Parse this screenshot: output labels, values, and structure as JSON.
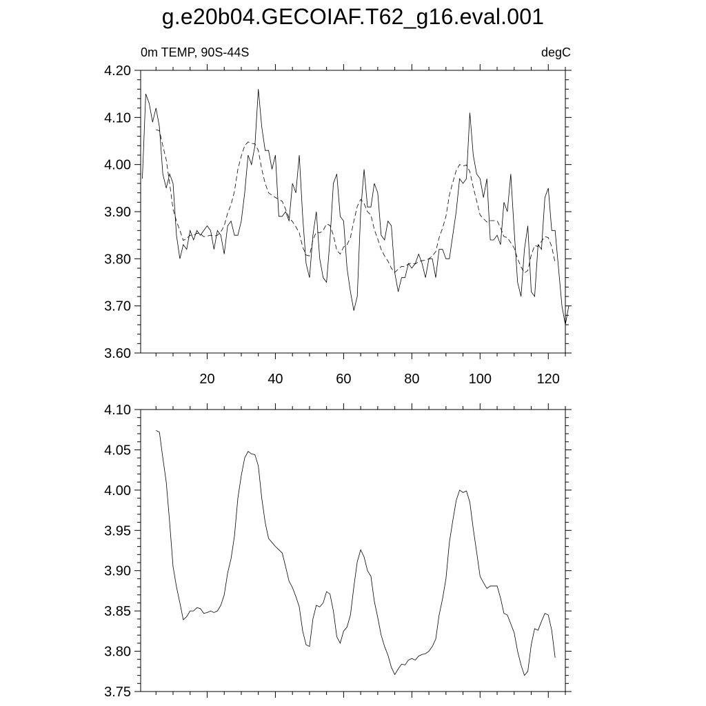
{
  "header": {
    "title": "g.e20b04.GECOIAF.T62_g16.eval.001",
    "left_string": "0m TEMP, 90S-44S",
    "right_string": "degC"
  },
  "chart_data": [
    {
      "type": "line",
      "xlim": [
        0.5,
        125
      ],
      "ylim": [
        3.6,
        4.2
      ],
      "x_ticks": [
        20,
        40,
        60,
        80,
        100,
        120
      ],
      "x_tick_labels": [
        "20",
        "40",
        "60",
        "80",
        "100",
        "120"
      ],
      "y_ticks": [
        3.6,
        3.7,
        3.8,
        3.9,
        4.0,
        4.1,
        4.2
      ],
      "y_tick_labels": [
        "3.60",
        "3.70",
        "3.80",
        "3.90",
        "4.00",
        "4.10",
        "4.20"
      ],
      "grid": false,
      "series": [
        {
          "style": "solid",
          "x_start": 1,
          "values": [
            3.97,
            4.15,
            4.13,
            4.09,
            4.12,
            4.08,
            3.98,
            3.95,
            3.98,
            3.96,
            3.85,
            3.8,
            3.83,
            3.82,
            3.86,
            3.84,
            3.86,
            3.85,
            3.86,
            3.87,
            3.86,
            3.82,
            3.86,
            3.85,
            3.81,
            3.87,
            3.88,
            3.85,
            3.85,
            3.88,
            3.94,
            4.02,
            4.0,
            4.04,
            4.16,
            4.08,
            4.03,
            4.03,
            3.99,
            4.02,
            3.89,
            3.89,
            3.9,
            3.88,
            3.96,
            3.94,
            4.02,
            3.89,
            3.79,
            3.76,
            3.85,
            3.9,
            3.8,
            3.76,
            3.75,
            3.84,
            3.96,
            3.98,
            3.89,
            3.88,
            3.78,
            3.73,
            3.69,
            3.72,
            3.9,
            3.99,
            3.91,
            3.91,
            3.96,
            3.94,
            3.85,
            3.84,
            3.88,
            3.87,
            3.77,
            3.73,
            3.76,
            3.76,
            3.79,
            3.78,
            3.79,
            3.81,
            3.79,
            3.76,
            3.8,
            3.8,
            3.76,
            3.82,
            3.82,
            3.8,
            3.8,
            3.85,
            3.9,
            3.97,
            3.96,
            3.97,
            4.11,
            4.02,
            3.98,
            3.97,
            3.93,
            3.97,
            3.84,
            3.84,
            3.85,
            3.83,
            3.92,
            3.9,
            3.98,
            3.86,
            3.75,
            3.72,
            3.82,
            3.87,
            3.73,
            3.72,
            3.83,
            3.82,
            3.93,
            3.95,
            3.86,
            3.86,
            3.78,
            3.7,
            3.66,
            3.7
          ]
        },
        {
          "style": "dashed",
          "x_start": 5,
          "values": [
            4.074,
            4.072,
            4.04,
            4.01,
            3.96,
            3.905,
            3.88,
            3.86,
            3.839,
            3.843,
            3.85,
            3.85,
            3.854,
            3.853,
            3.847,
            3.848,
            3.85,
            3.848,
            3.85,
            3.857,
            3.87,
            3.897,
            3.915,
            3.943,
            3.99,
            4.018,
            4.04,
            4.048,
            4.045,
            4.044,
            4.03,
            3.99,
            3.96,
            3.94,
            3.935,
            3.93,
            3.926,
            3.922,
            3.905,
            3.887,
            3.879,
            3.868,
            3.855,
            3.825,
            3.808,
            3.806,
            3.84,
            3.857,
            3.855,
            3.86,
            3.874,
            3.871,
            3.85,
            3.818,
            3.81,
            3.825,
            3.83,
            3.845,
            3.88,
            3.911,
            3.926,
            3.917,
            3.9,
            3.893,
            3.862,
            3.842,
            3.82,
            3.806,
            3.795,
            3.78,
            3.771,
            3.778,
            3.784,
            3.783,
            3.789,
            3.791,
            3.789,
            3.794,
            3.796,
            3.797,
            3.8,
            3.806,
            3.815,
            3.845,
            3.865,
            3.89,
            3.935,
            3.962,
            3.987,
            4.0,
            3.997,
            3.999,
            3.985,
            3.952,
            3.923,
            3.893,
            3.885,
            3.878,
            3.881,
            3.881,
            3.881,
            3.866,
            3.847,
            3.845,
            3.834,
            3.823,
            3.8,
            3.783,
            3.77,
            3.775,
            3.808,
            3.828,
            3.826,
            3.837,
            3.847,
            3.845,
            3.826,
            3.792
          ]
        }
      ]
    },
    {
      "type": "line",
      "xlim": [
        0.5,
        125
      ],
      "ylim": [
        3.75,
        4.1
      ],
      "y_ticks": [
        3.75,
        3.8,
        3.85,
        3.9,
        3.95,
        4.0,
        4.05,
        4.1
      ],
      "y_tick_labels": [
        "3.75",
        "3.80",
        "3.85",
        "3.90",
        "3.95",
        "4.00",
        "4.05",
        "4.10"
      ],
      "grid": false,
      "series": [
        {
          "style": "solid",
          "x_start": 5,
          "values": [
            4.074,
            4.072,
            4.04,
            4.01,
            3.96,
            3.905,
            3.88,
            3.86,
            3.839,
            3.843,
            3.85,
            3.85,
            3.854,
            3.853,
            3.847,
            3.848,
            3.85,
            3.848,
            3.85,
            3.857,
            3.87,
            3.897,
            3.915,
            3.943,
            3.99,
            4.018,
            4.04,
            4.048,
            4.045,
            4.044,
            4.03,
            3.99,
            3.96,
            3.94,
            3.935,
            3.93,
            3.926,
            3.922,
            3.905,
            3.887,
            3.879,
            3.868,
            3.855,
            3.825,
            3.808,
            3.806,
            3.84,
            3.857,
            3.855,
            3.86,
            3.874,
            3.871,
            3.85,
            3.818,
            3.81,
            3.825,
            3.83,
            3.845,
            3.88,
            3.911,
            3.926,
            3.917,
            3.9,
            3.893,
            3.862,
            3.842,
            3.82,
            3.806,
            3.795,
            3.78,
            3.771,
            3.778,
            3.784,
            3.783,
            3.789,
            3.791,
            3.789,
            3.794,
            3.796,
            3.797,
            3.8,
            3.806,
            3.815,
            3.845,
            3.865,
            3.89,
            3.935,
            3.962,
            3.987,
            4.0,
            3.997,
            3.999,
            3.985,
            3.952,
            3.923,
            3.893,
            3.885,
            3.878,
            3.881,
            3.881,
            3.881,
            3.866,
            3.847,
            3.845,
            3.834,
            3.823,
            3.8,
            3.783,
            3.77,
            3.775,
            3.808,
            3.828,
            3.826,
            3.837,
            3.847,
            3.845,
            3.826,
            3.792
          ]
        }
      ]
    }
  ]
}
